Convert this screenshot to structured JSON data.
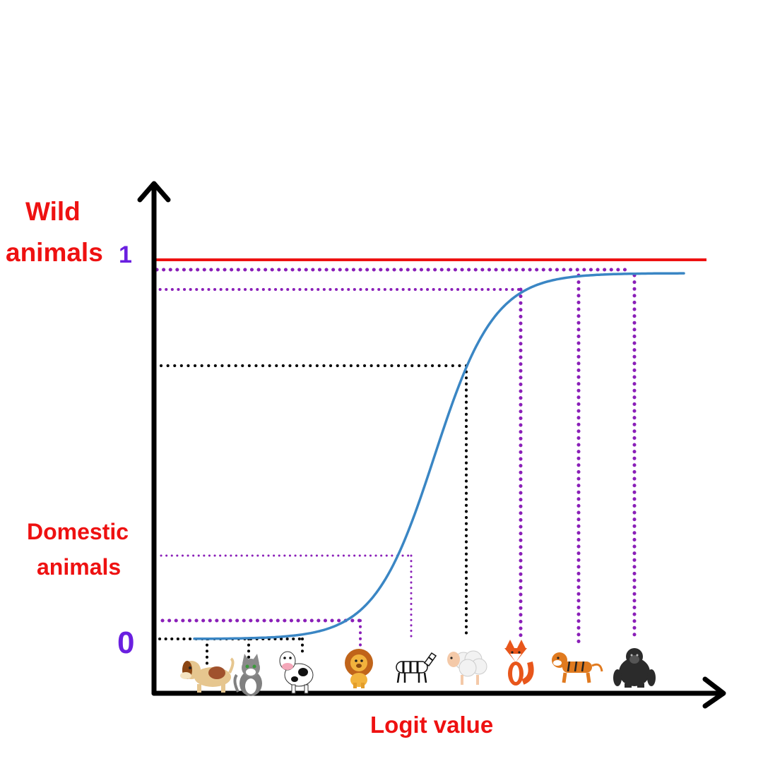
{
  "labels": {
    "wild_line1": "Wild",
    "wild_line2": "animals",
    "domestic_line1": "Domestic",
    "domestic_line2": "animals",
    "x_axis": "Logit value",
    "y_one": "1",
    "y_zero": "0"
  },
  "colors": {
    "label_red": "#ee1111",
    "tick_purple": "#6a1fe0",
    "curve": "#3a86c4",
    "guide_purple": "#8a1fb8",
    "guide_black": "#000000",
    "axis": "#000000"
  },
  "diagram": {
    "curve": "sigmoid",
    "upper_bound_line": "red horizontal line at 1"
  },
  "animals": [
    {
      "name": "dog",
      "group": "domestic",
      "icon": "dog-icon"
    },
    {
      "name": "cat",
      "group": "domestic",
      "icon": "cat-icon"
    },
    {
      "name": "cow",
      "group": "domestic",
      "icon": "cow-icon"
    },
    {
      "name": "lion",
      "group": "wild",
      "icon": "lion-icon"
    },
    {
      "name": "zebra",
      "group": "wild",
      "icon": "zebra-icon"
    },
    {
      "name": "sheep",
      "group": "domestic",
      "icon": "sheep-icon"
    },
    {
      "name": "fox",
      "group": "wild",
      "icon": "fox-icon"
    },
    {
      "name": "tiger",
      "group": "wild",
      "icon": "tiger-icon"
    },
    {
      "name": "gorilla",
      "group": "wild",
      "icon": "gorilla-icon"
    }
  ]
}
